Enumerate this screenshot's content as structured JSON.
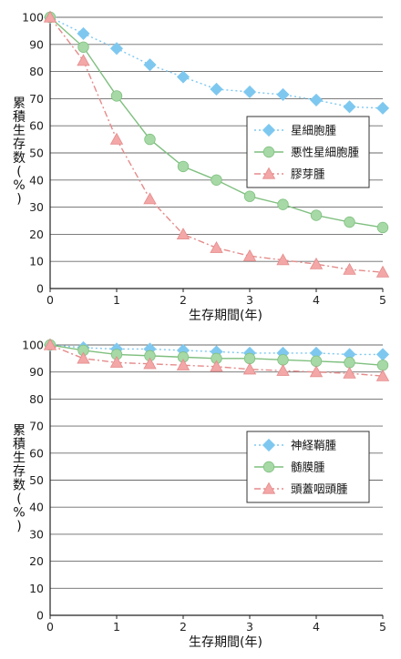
{
  "chart_data": [
    {
      "type": "line",
      "xlabel": "生存期間(年)",
      "ylabel": "累積生存数(%)",
      "xlim": [
        0,
        5
      ],
      "ylim": [
        0,
        100
      ],
      "x_ticks": [
        "0",
        "1",
        "2",
        "3",
        "4",
        "5"
      ],
      "y_ticks": [
        "0",
        "10",
        "20",
        "30",
        "40",
        "50",
        "60",
        "70",
        "80",
        "90",
        "100"
      ],
      "grid": "horizontal",
      "legend_position": "right-middle",
      "x": [
        0,
        0.5,
        1,
        1.5,
        2,
        2.5,
        3,
        3.5,
        4,
        4.5,
        5
      ],
      "series": [
        {
          "name": "星細胞腫",
          "marker": "diamond",
          "color": "#7ec8f0",
          "line": "dotted",
          "values": [
            100,
            94,
            88.5,
            82.5,
            78,
            73.5,
            72.5,
            71.5,
            69.5,
            67,
            66.5
          ]
        },
        {
          "name": "悪性星細胞腫",
          "marker": "circle",
          "color": "#a6d9a6",
          "line": "solid",
          "values": [
            100,
            89,
            71,
            55,
            45,
            40,
            34,
            31,
            27,
            24.5,
            22.5
          ]
        },
        {
          "name": "膠芽腫",
          "marker": "triangle",
          "color": "#f3a7a7",
          "line": "dashdot",
          "values": [
            100,
            84,
            55,
            33,
            20,
            15,
            12,
            10.5,
            9,
            7,
            6
          ]
        }
      ]
    },
    {
      "type": "line",
      "xlabel": "生存期間(年)",
      "ylabel": "累積生存数(%)",
      "xlim": [
        0,
        5
      ],
      "ylim": [
        0,
        100
      ],
      "x_ticks": [
        "0",
        "1",
        "2",
        "3",
        "4",
        "5"
      ],
      "y_ticks": [
        "0",
        "10",
        "20",
        "30",
        "40",
        "50",
        "60",
        "70",
        "80",
        "90",
        "100"
      ],
      "grid": "horizontal",
      "legend_position": "right-middle",
      "x": [
        0,
        0.5,
        1,
        1.5,
        2,
        2.5,
        3,
        3.5,
        4,
        4.5,
        5
      ],
      "series": [
        {
          "name": "神経鞘腫",
          "marker": "diamond",
          "color": "#7ec8f0",
          "line": "dotted",
          "values": [
            100,
            99,
            98.5,
            98.5,
            98,
            97.5,
            97,
            97,
            97,
            96.5,
            96.5
          ]
        },
        {
          "name": "髄膜腫",
          "marker": "circle",
          "color": "#a6d9a6",
          "line": "solid",
          "values": [
            100,
            98,
            96.5,
            96,
            95.5,
            95,
            95,
            94.5,
            94,
            93.5,
            92.5
          ]
        },
        {
          "name": "頭蓋咽頭腫",
          "marker": "triangle",
          "color": "#f3a7a7",
          "line": "dashdot",
          "values": [
            100,
            95,
            93.5,
            93,
            92.5,
            92,
            91,
            90.5,
            90,
            89.5,
            88.5
          ]
        }
      ]
    }
  ]
}
